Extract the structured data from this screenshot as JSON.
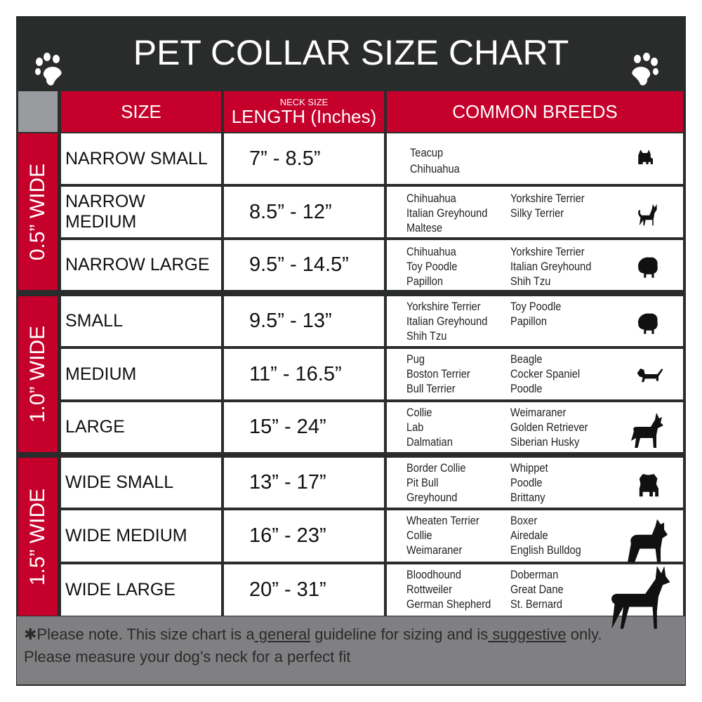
{
  "title": "PET COLLAR SIZE CHART",
  "icons": {
    "left": "paw-print-icon",
    "right": "paw-print-icon"
  },
  "colors": {
    "header": "#2a2b2b",
    "accent": "#c4002b",
    "footer": "#808083"
  },
  "headers": {
    "size": "SIZE",
    "length_top": "NECK SIZE",
    "length": "LENGTH (Inches)",
    "breeds": "COMMON BREEDS"
  },
  "groups": [
    {
      "label": "0.5” WIDE",
      "rows": [
        {
          "size": "NARROW SMALL",
          "length": "7” - 8.5”",
          "breeds1": [
            "Teacup",
            "Chihuahua"
          ],
          "breeds2": [],
          "icon": "yorkie-silhouette-icon"
        },
        {
          "size": "NARROW MEDIUM",
          "length": "8.5” - 12”",
          "breeds1": [
            "Chihuahua",
            "Italian Greyhound",
            "Maltese"
          ],
          "breeds2": [
            "Yorkshire Terrier",
            "Silky Terrier"
          ],
          "icon": "chihuahua-silhouette-icon"
        },
        {
          "size": "NARROW LARGE",
          "length": "9.5” - 14.5”",
          "breeds1": [
            "Chihuahua",
            "Toy Poodle",
            "Papillon"
          ],
          "breeds2": [
            "Yorkshire Terrier",
            "Italian Greyhound",
            "Shih Tzu"
          ],
          "icon": "pomeranian-silhouette-icon"
        }
      ]
    },
    {
      "label": "1.0” WIDE",
      "rows": [
        {
          "size": "SMALL",
          "length": "9.5” - 13”",
          "breeds1": [
            "Yorkshire Terrier",
            "Italian Greyhound",
            "Shih Tzu"
          ],
          "breeds2": [
            "Toy Poodle",
            "Papillon"
          ],
          "icon": "pomeranian-silhouette-icon"
        },
        {
          "size": "MEDIUM",
          "length": "11” - 16.5”",
          "breeds1": [
            "Pug",
            "Boston Terrier",
            "Bull Terrier"
          ],
          "breeds2": [
            "Beagle",
            "Cocker Spaniel",
            "Poodle"
          ],
          "icon": "dachshund-silhouette-icon"
        },
        {
          "size": "LARGE",
          "length": "15” - 24”",
          "breeds1": [
            "Collie",
            "Lab",
            "Dalmatian"
          ],
          "breeds2": [
            "Weimaraner",
            "Golden Retriever",
            "Siberian Husky"
          ],
          "icon": "shepherd-silhouette-icon"
        }
      ]
    },
    {
      "label": "1.5” WIDE",
      "rows": [
        {
          "size": "WIDE SMALL",
          "length": "13” - 17”",
          "breeds1": [
            "Border Collie",
            "Pit Bull",
            "Greyhound"
          ],
          "breeds2": [
            "Whippet",
            "Poodle",
            "Brittany"
          ],
          "icon": "bulldog-silhouette-icon"
        },
        {
          "size": "WIDE MEDIUM",
          "length": "16” - 23”",
          "breeds1": [
            "Wheaten Terrier",
            "Collie",
            "Weimaraner"
          ],
          "breeds2": [
            "Boxer",
            "Airedale",
            "English Bulldog"
          ],
          "icon": "pitbull-silhouette-icon"
        },
        {
          "size": "WIDE LARGE",
          "length": "20” - 31”",
          "breeds1": [
            "Bloodhound",
            "Rottweiler",
            "German Shepherd"
          ],
          "breeds2": [
            "Doberman",
            "Great Dane",
            "St. Bernard"
          ],
          "icon": "doberman-silhouette-icon"
        }
      ]
    }
  ],
  "footer": {
    "p1": "✱Please note. This size chart is a",
    "u1": " general",
    "p2": " guideline for sizing and is",
    "u2": " suggestive",
    "p3": " only.",
    "line2": "Please measure your dog’s neck for a perfect fit"
  }
}
